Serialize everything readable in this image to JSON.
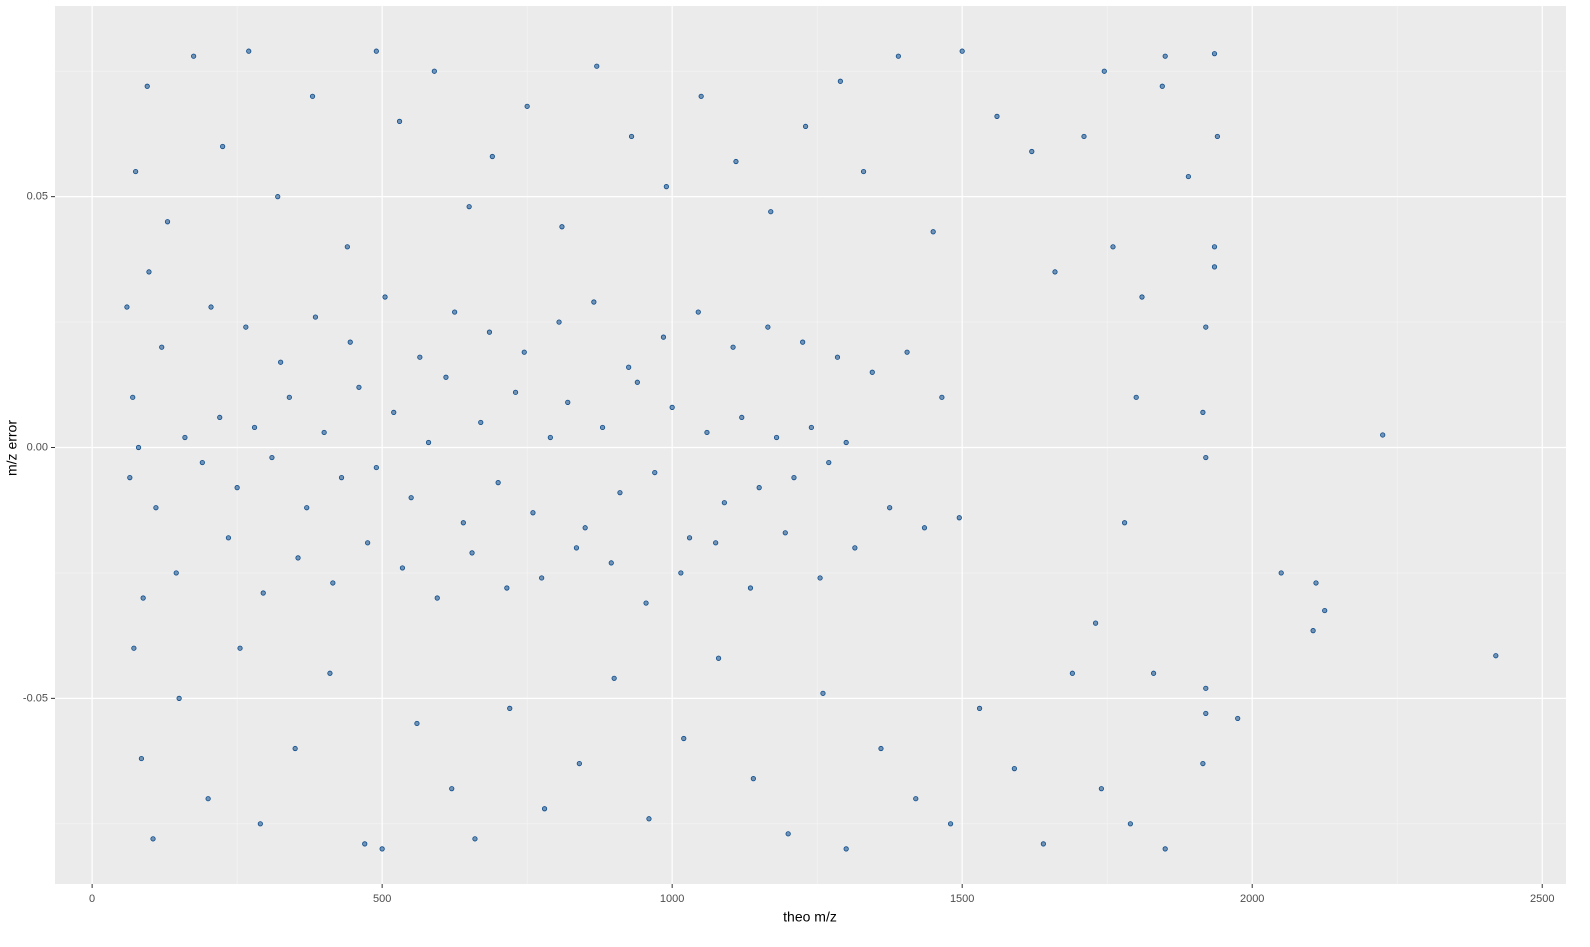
{
  "chart_data": {
    "type": "scatter",
    "x_label": "theo m/z",
    "y_label": "m/z error",
    "color": "#0b4a8a",
    "xlim": [
      -64,
      2541
    ],
    "ylim": [
      -0.087,
      0.088
    ],
    "xticks": [
      0,
      500,
      1000,
      1500,
      2000,
      2500
    ],
    "yticks": [
      -0.05,
      {
        "value": 0,
        "label": "0.00"
      },
      0.05
    ],
    "grid": true,
    "minor_grid": true,
    "x": [
      2225,
      2420,
      2110,
      2125,
      2105,
      2050,
      1975,
      1940,
      1935,
      1850,
      1850,
      1890,
      1935,
      1935,
      1920,
      1915,
      1920,
      1920,
      1915,
      1920,
      160,
      190,
      220,
      250,
      280,
      310,
      340,
      370,
      400,
      430,
      460,
      490,
      520,
      550,
      580,
      610,
      640,
      670,
      700,
      730,
      760,
      790,
      820,
      850,
      880,
      910,
      940,
      970,
      1000,
      1030,
      1060,
      1090,
      1120,
      1150,
      1180,
      1210,
      1240,
      1270,
      1300,
      120,
      145,
      205,
      235,
      265,
      295,
      325,
      355,
      385,
      415,
      445,
      475,
      505,
      535,
      565,
      595,
      625,
      655,
      685,
      715,
      745,
      775,
      805,
      835,
      865,
      895,
      925,
      955,
      985,
      1015,
      1045,
      1075,
      1105,
      1135,
      1165,
      1195,
      1225,
      1255,
      1285,
      1315,
      1345,
      1375,
      1405,
      1435,
      1465,
      1495,
      75,
      85,
      95,
      105,
      130,
      150,
      175,
      200,
      225,
      255,
      270,
      290,
      320,
      350,
      380,
      410,
      440,
      470,
      490,
      500,
      530,
      560,
      590,
      620,
      650,
      660,
      690,
      720,
      750,
      780,
      810,
      840,
      870,
      900,
      930,
      960,
      990,
      1020,
      1050,
      1080,
      1110,
      1140,
      1170,
      1200,
      1230,
      1260,
      1290,
      1300,
      1330,
      1360,
      1390,
      1420,
      1450,
      1480,
      1500,
      1530,
      1560,
      1590,
      1620,
      1640,
      1660,
      1690,
      1710,
      1730,
      1745,
      1740,
      1760,
      1790,
      1810,
      1830,
      1845,
      1800,
      1780,
      60,
      65,
      70,
      72,
      80,
      88,
      98,
      110
    ],
    "values": [
      0.0025,
      -0.0415,
      -0.027,
      -0.0325,
      -0.0365,
      -0.025,
      -0.054,
      0.062,
      0.0785,
      0.078,
      -0.08,
      0.054,
      0.036,
      0.04,
      0.024,
      -0.063,
      -0.048,
      -0.053,
      0.007,
      -0.002,
      0.002,
      -0.003,
      0.006,
      -0.008,
      0.004,
      -0.002,
      0.01,
      -0.012,
      0.003,
      -0.006,
      0.012,
      -0.004,
      0.007,
      -0.01,
      0.001,
      0.014,
      -0.015,
      0.005,
      -0.007,
      0.011,
      -0.013,
      0.002,
      0.009,
      -0.016,
      0.004,
      -0.009,
      0.013,
      -0.005,
      0.008,
      -0.018,
      0.003,
      -0.011,
      0.006,
      -0.008,
      0.002,
      -0.006,
      0.004,
      -0.003,
      0.001,
      0.02,
      -0.025,
      0.028,
      -0.018,
      0.024,
      -0.029,
      0.017,
      -0.022,
      0.026,
      -0.027,
      0.021,
      -0.019,
      0.03,
      -0.024,
      0.018,
      -0.03,
      0.027,
      -0.021,
      0.023,
      -0.028,
      0.019,
      -0.026,
      0.025,
      -0.02,
      0.029,
      -0.023,
      0.016,
      -0.031,
      0.022,
      -0.025,
      0.027,
      -0.019,
      0.02,
      -0.028,
      0.024,
      -0.017,
      0.021,
      -0.026,
      0.018,
      -0.02,
      0.015,
      -0.012,
      0.019,
      -0.016,
      0.01,
      -0.014,
      0.055,
      -0.062,
      0.072,
      -0.078,
      0.045,
      -0.05,
      0.078,
      -0.07,
      0.06,
      -0.04,
      0.079,
      -0.075,
      0.05,
      -0.06,
      0.07,
      -0.045,
      0.04,
      -0.079,
      0.079,
      -0.08,
      0.065,
      -0.055,
      0.075,
      -0.068,
      0.048,
      -0.078,
      0.058,
      -0.052,
      0.068,
      -0.072,
      0.044,
      -0.063,
      0.076,
      -0.046,
      0.062,
      -0.074,
      0.052,
      -0.058,
      0.07,
      -0.042,
      0.057,
      -0.066,
      0.047,
      -0.077,
      0.064,
      -0.049,
      0.073,
      -0.08,
      0.055,
      -0.06,
      0.078,
      -0.07,
      0.043,
      -0.075,
      0.079,
      -0.052,
      0.066,
      -0.064,
      0.059,
      -0.079,
      0.035,
      -0.045,
      0.062,
      -0.035,
      0.075,
      -0.068,
      0.04,
      -0.075,
      0.03,
      -0.045,
      0.072,
      0.01,
      -0.015,
      0.028,
      -0.006,
      0.01,
      -0.04,
      0,
      -0.03,
      0.035,
      -0.012
    ]
  }
}
